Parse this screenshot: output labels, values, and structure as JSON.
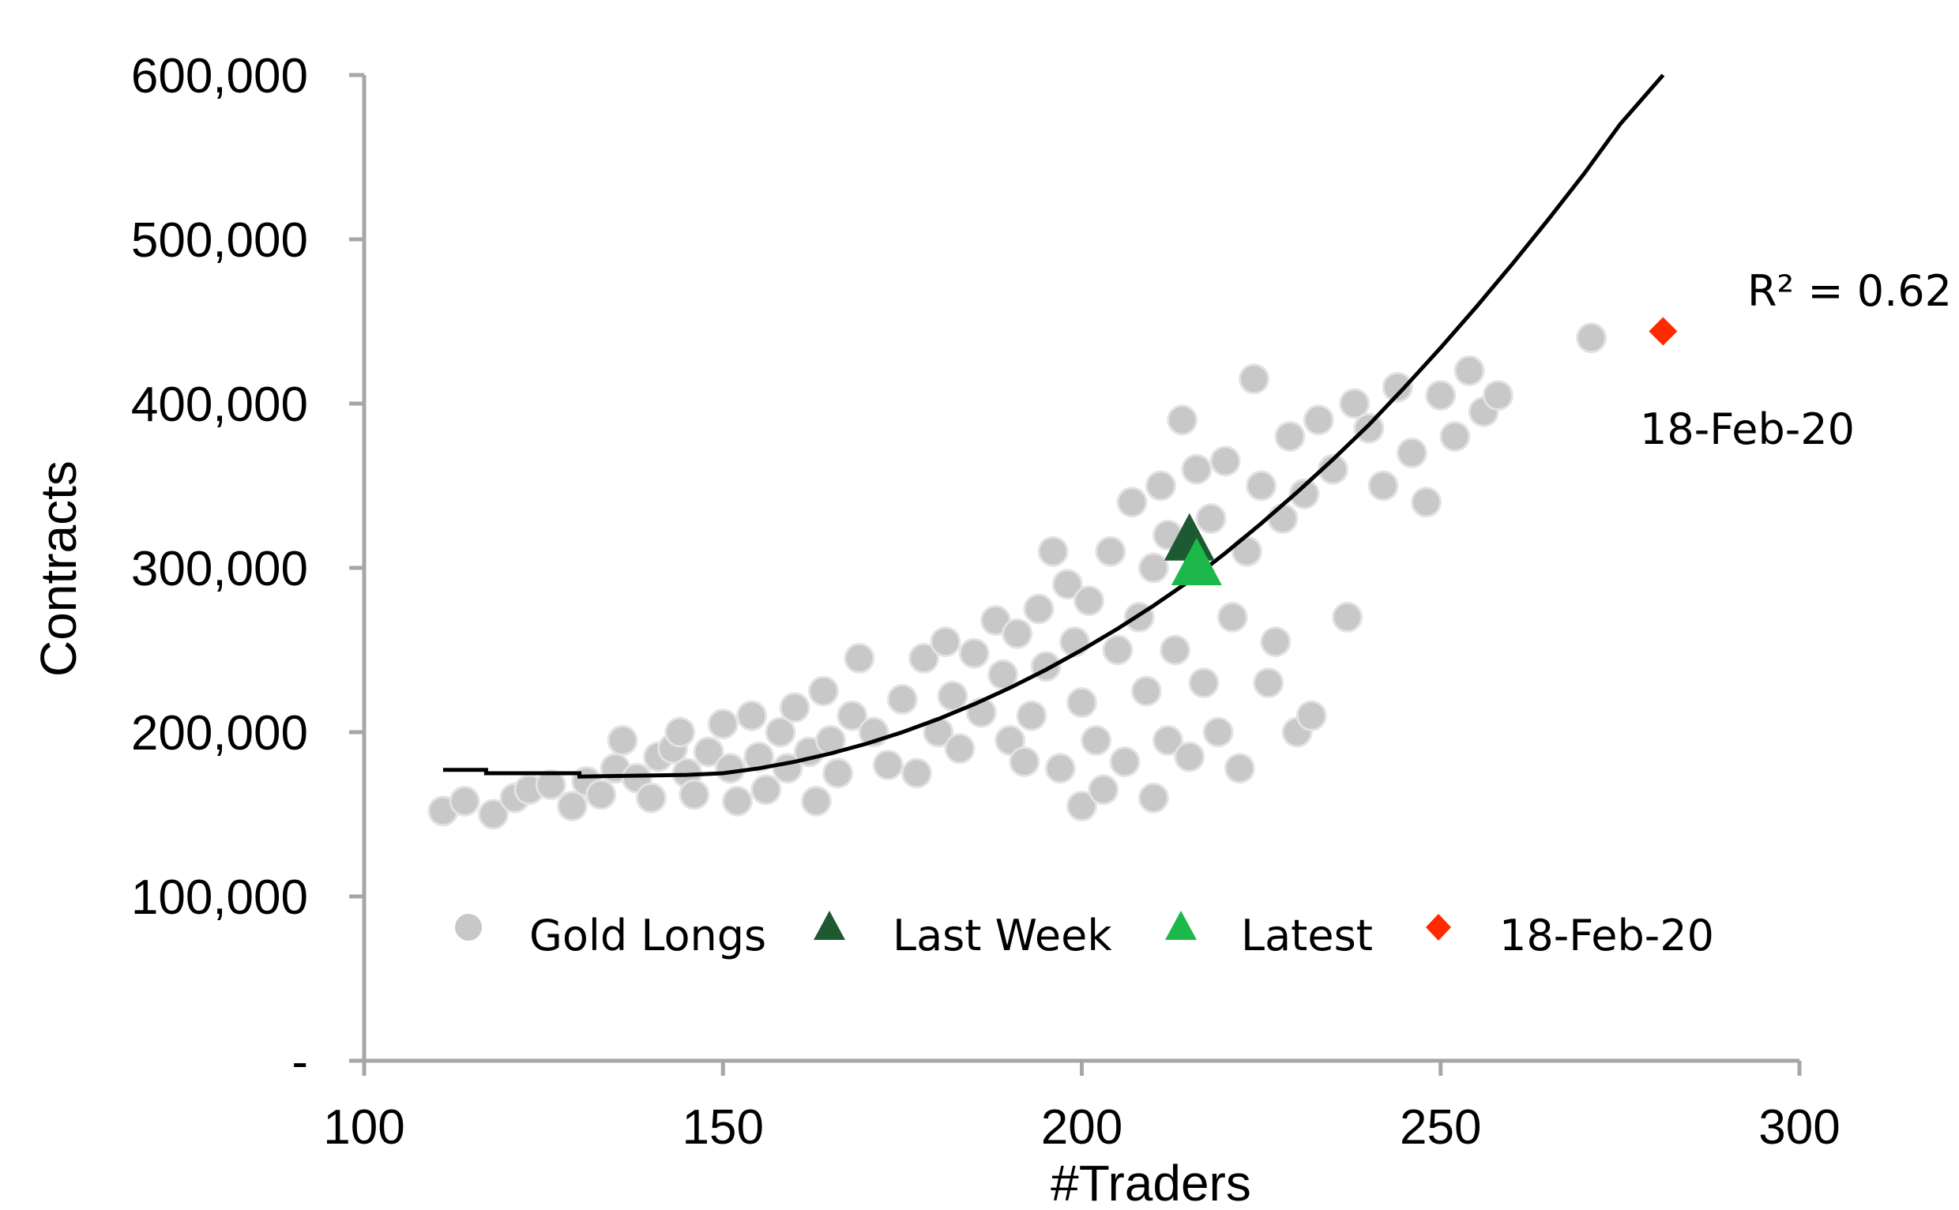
{
  "chart_data": {
    "type": "scatter",
    "title": "",
    "xlabel": "#Traders",
    "ylabel": "Contracts",
    "xlim": [
      100,
      300
    ],
    "ylim": [
      0,
      600000
    ],
    "x_ticks": [
      100,
      150,
      200,
      250,
      300
    ],
    "x_tick_labels": [
      "100",
      "150",
      "200",
      "250",
      "300"
    ],
    "y_ticks": [
      0,
      100000,
      200000,
      300000,
      400000,
      500000,
      600000
    ],
    "y_tick_labels": [
      "-",
      "100,000",
      "200,000",
      "300,000",
      "400,000",
      "500,000",
      "600,000"
    ],
    "grid": false,
    "legend_position": "bottom-inside",
    "annotations": {
      "r_squared": "R² = 0.62",
      "date_label": "18-Feb-20"
    },
    "series": [
      {
        "name": "Gold Longs",
        "marker": "circle",
        "color": "#c8c8c8",
        "points": [
          [
            111,
            152000
          ],
          [
            114,
            158000
          ],
          [
            118,
            150000
          ],
          [
            121,
            160000
          ],
          [
            123,
            165000
          ],
          [
            126,
            168000
          ],
          [
            129,
            155000
          ],
          [
            131,
            170000
          ],
          [
            133,
            162000
          ],
          [
            135,
            178000
          ],
          [
            136,
            195000
          ],
          [
            138,
            172000
          ],
          [
            140,
            160000
          ],
          [
            141,
            185000
          ],
          [
            143,
            190000
          ],
          [
            144,
            200000
          ],
          [
            145,
            175000
          ],
          [
            146,
            162000
          ],
          [
            148,
            188000
          ],
          [
            150,
            205000
          ],
          [
            151,
            178000
          ],
          [
            152,
            158000
          ],
          [
            154,
            210000
          ],
          [
            155,
            185000
          ],
          [
            156,
            165000
          ],
          [
            158,
            200000
          ],
          [
            159,
            178000
          ],
          [
            160,
            215000
          ],
          [
            162,
            188000
          ],
          [
            163,
            158000
          ],
          [
            164,
            225000
          ],
          [
            165,
            195000
          ],
          [
            166,
            175000
          ],
          [
            168,
            210000
          ],
          [
            169,
            245000
          ],
          [
            171,
            200000
          ],
          [
            173,
            180000
          ],
          [
            175,
            220000
          ],
          [
            177,
            175000
          ],
          [
            178,
            245000
          ],
          [
            180,
            200000
          ],
          [
            181,
            255000
          ],
          [
            182,
            222000
          ],
          [
            183,
            190000
          ],
          [
            185,
            248000
          ],
          [
            186,
            212000
          ],
          [
            188,
            268000
          ],
          [
            189,
            235000
          ],
          [
            190,
            195000
          ],
          [
            191,
            260000
          ],
          [
            192,
            182000
          ],
          [
            193,
            210000
          ],
          [
            194,
            275000
          ],
          [
            195,
            240000
          ],
          [
            196,
            310000
          ],
          [
            197,
            178000
          ],
          [
            198,
            290000
          ],
          [
            199,
            255000
          ],
          [
            200,
            155000
          ],
          [
            200,
            218000
          ],
          [
            201,
            280000
          ],
          [
            202,
            195000
          ],
          [
            203,
            165000
          ],
          [
            204,
            310000
          ],
          [
            205,
            250000
          ],
          [
            206,
            182000
          ],
          [
            207,
            340000
          ],
          [
            208,
            270000
          ],
          [
            209,
            225000
          ],
          [
            210,
            160000
          ],
          [
            210,
            300000
          ],
          [
            211,
            350000
          ],
          [
            212,
            195000
          ],
          [
            212,
            320000
          ],
          [
            213,
            250000
          ],
          [
            214,
            390000
          ],
          [
            215,
            185000
          ],
          [
            216,
            360000
          ],
          [
            217,
            230000
          ],
          [
            218,
            330000
          ],
          [
            219,
            200000
          ],
          [
            220,
            365000
          ],
          [
            221,
            270000
          ],
          [
            222,
            178000
          ],
          [
            223,
            310000
          ],
          [
            224,
            415000
          ],
          [
            225,
            350000
          ],
          [
            226,
            230000
          ],
          [
            227,
            255000
          ],
          [
            228,
            330000
          ],
          [
            229,
            380000
          ],
          [
            230,
            200000
          ],
          [
            231,
            345000
          ],
          [
            232,
            210000
          ],
          [
            233,
            390000
          ],
          [
            235,
            360000
          ],
          [
            237,
            270000
          ],
          [
            238,
            400000
          ],
          [
            240,
            385000
          ],
          [
            242,
            350000
          ],
          [
            244,
            410000
          ],
          [
            246,
            370000
          ],
          [
            248,
            340000
          ],
          [
            250,
            405000
          ],
          [
            252,
            380000
          ],
          [
            254,
            420000
          ],
          [
            256,
            395000
          ],
          [
            258,
            405000
          ],
          [
            271,
            440000
          ]
        ]
      },
      {
        "name": "Last Week",
        "marker": "triangle",
        "color": "#1d5a32",
        "points": [
          [
            215,
            315000
          ]
        ]
      },
      {
        "name": "Latest",
        "marker": "triangle",
        "color": "#1db84a",
        "points": [
          [
            216,
            300000
          ]
        ]
      },
      {
        "name": "18-Feb-20",
        "marker": "diamond",
        "color": "#ff2a00",
        "points": [
          [
            281,
            444000
          ]
        ]
      }
    ],
    "trendline": {
      "type": "polynomial",
      "points": [
        [
          111,
          177000
        ],
        [
          117,
          177000
        ],
        [
          117,
          175000
        ],
        [
          130,
          175000
        ],
        [
          130,
          173000
        ],
        [
          145,
          174000
        ],
        [
          150,
          175000
        ],
        [
          155,
          178000
        ],
        [
          160,
          182000
        ],
        [
          165,
          187000
        ],
        [
          170,
          193000
        ],
        [
          175,
          200000
        ],
        [
          180,
          208000
        ],
        [
          185,
          217000
        ],
        [
          190,
          227000
        ],
        [
          195,
          238000
        ],
        [
          200,
          250000
        ],
        [
          205,
          263000
        ],
        [
          210,
          277000
        ],
        [
          215,
          292000
        ],
        [
          220,
          309000
        ],
        [
          225,
          327000
        ],
        [
          230,
          346000
        ],
        [
          235,
          366000
        ],
        [
          240,
          387000
        ],
        [
          245,
          410000
        ],
        [
          250,
          434000
        ],
        [
          255,
          459000
        ],
        [
          260,
          485000
        ],
        [
          265,
          512000
        ],
        [
          270,
          540000
        ],
        [
          275,
          570000
        ],
        [
          281,
          600000
        ]
      ]
    }
  }
}
